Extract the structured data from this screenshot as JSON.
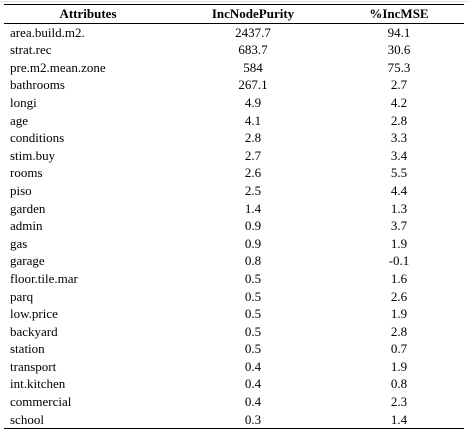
{
  "table": {
    "headers": [
      "Attributes",
      "IncNodePurity",
      "%IncMSE"
    ],
    "rows": [
      [
        "area.build.m2.",
        "2437.7",
        "94.1"
      ],
      [
        "strat.rec",
        "683.7",
        "30.6"
      ],
      [
        "pre.m2.mean.zone",
        "584",
        "75.3"
      ],
      [
        "bathrooms",
        "267.1",
        "2.7"
      ],
      [
        "longi",
        "4.9",
        "4.2"
      ],
      [
        "age",
        "4.1",
        "2.8"
      ],
      [
        "conditions",
        "2.8",
        "3.3"
      ],
      [
        "stim.buy",
        "2.7",
        "3.4"
      ],
      [
        "rooms",
        "2.6",
        "5.5"
      ],
      [
        "piso",
        "2.5",
        "4.4"
      ],
      [
        "garden",
        "1.4",
        "1.3"
      ],
      [
        "admin",
        "0.9",
        "3.7"
      ],
      [
        "gas",
        "0.9",
        "1.9"
      ],
      [
        "garage",
        "0.8",
        "-0.1"
      ],
      [
        "floor.tile.mar",
        "0.5",
        "1.6"
      ],
      [
        "parq",
        "0.5",
        "2.6"
      ],
      [
        "low.price",
        "0.5",
        "1.9"
      ],
      [
        "backyard",
        "0.5",
        "2.8"
      ],
      [
        "station",
        "0.5",
        "0.7"
      ],
      [
        "transport",
        "0.4",
        "1.9"
      ],
      [
        "int.kitchen",
        "0.4",
        "0.8"
      ],
      [
        "commercial",
        "0.4",
        "2.3"
      ],
      [
        "school",
        "0.3",
        "1.4"
      ]
    ]
  }
}
